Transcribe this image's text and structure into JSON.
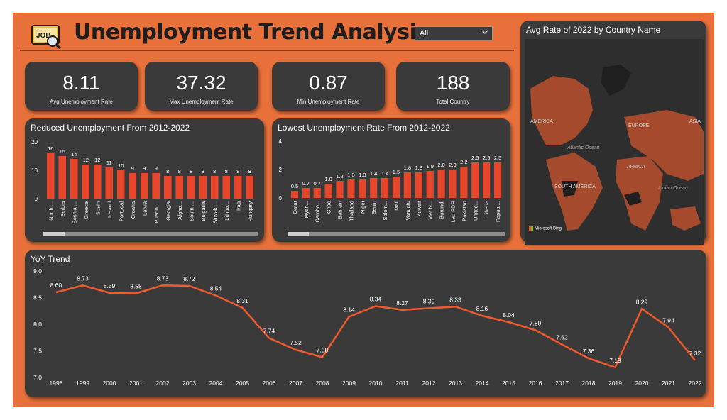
{
  "header": {
    "title": "Unemployment Trend Analysis",
    "logo_text": "JOB"
  },
  "filter": {
    "selected": "All"
  },
  "kpis": [
    {
      "value": "8.11",
      "label": "Avg Unemployment Rate"
    },
    {
      "value": "37.32",
      "label": "Max Unemployment Rate"
    },
    {
      "value": "0.87",
      "label": "Min Unemployment Rate"
    },
    {
      "value": "188",
      "label": "Total Country"
    }
  ],
  "map": {
    "title": "Avg Rate of 2022 by Country Name",
    "labels": {
      "america": "AMERICA",
      "europe": "EUROPE",
      "asia": "ASIA",
      "atlantic": "Atlantic Ocean",
      "africa": "AFRICA",
      "south_america": "SOUTH AMERICA",
      "indian": "Indian Ocean"
    },
    "credit": "Microsoft Bing",
    "colors": {
      "ocean": "#2e2e2e",
      "land": "#a54a2c",
      "dark_land": "#1f1f1f"
    }
  },
  "colors": {
    "accent": "#e8703a",
    "bar": "#e8462a",
    "line": "#f05a2c",
    "card": "#3a3a3a"
  },
  "chart_data": [
    {
      "type": "bar",
      "title": "Reduced Unemployment From 2012-2022",
      "categories": [
        "North ...",
        "Serbia",
        "Bosnia ...",
        "Greece",
        "Spain",
        "Ireland",
        "Portugal",
        "Croatia",
        "Latvia",
        "Puerto ...",
        "Georgia",
        "Afgha...",
        "South ...",
        "Bulgaria",
        "Slovak ...",
        "Lithua...",
        "Iraq",
        "Hungary"
      ],
      "values": [
        16,
        15,
        14,
        12,
        12,
        11,
        10,
        9,
        9,
        9,
        8,
        8,
        8,
        8,
        8,
        8,
        8,
        8
      ],
      "yticks": [
        0,
        10,
        20
      ],
      "ylim": [
        0,
        20
      ]
    },
    {
      "type": "bar",
      "title": "Lowest Unemployment Rate From 2012-2022",
      "categories": [
        "Qatar",
        "Myan...",
        "Cambo...",
        "Chad",
        "Bahrain",
        "Thailand",
        "Niger",
        "Benin",
        "Solom...",
        "Mali",
        "Vanuatu",
        "Kuwait",
        "Viet N...",
        "Burundi",
        "Lao PDR",
        "Pakistan",
        "United...",
        "Liberia",
        "Papua ..."
      ],
      "values": [
        0.5,
        0.7,
        0.7,
        1.0,
        1.2,
        1.3,
        1.3,
        1.4,
        1.4,
        1.5,
        1.8,
        1.8,
        1.9,
        2.0,
        2.0,
        2.2,
        2.5,
        2.5,
        2.5
      ],
      "labels": [
        "0.5",
        "0.7",
        "0.7",
        "1.0",
        "1.2",
        "1.3",
        "1.3",
        "1.4",
        "1.4",
        "1.5",
        "1.8",
        "1.8",
        "1.9",
        "2.0",
        "2.0",
        "2.2",
        "2.5",
        "2.5",
        "2.5"
      ],
      "yticks": [
        0,
        2,
        4
      ],
      "ylim": [
        0,
        4
      ]
    },
    {
      "type": "line",
      "title": "YoY Trend",
      "x": [
        "1998",
        "1999",
        "2000",
        "2001",
        "2002",
        "2003",
        "2004",
        "2005",
        "2006",
        "2007",
        "2008",
        "2009",
        "2010",
        "2011",
        "2012",
        "2013",
        "2014",
        "2015",
        "2016",
        "2017",
        "2018",
        "2019",
        "2020",
        "2021",
        "2022"
      ],
      "values": [
        8.6,
        8.73,
        8.59,
        8.58,
        8.73,
        8.72,
        8.54,
        8.31,
        7.74,
        7.52,
        7.38,
        8.14,
        8.34,
        8.27,
        8.3,
        8.33,
        8.16,
        8.04,
        7.89,
        7.62,
        7.36,
        7.19,
        8.29,
        7.94,
        7.32
      ],
      "labels": [
        "8.60",
        "8.73",
        "8.59",
        "8.58",
        "8.73",
        "8.72",
        "8.54",
        "8.31",
        "7.74",
        "7.52",
        "7.38",
        "8.14",
        "8.34",
        "8.27",
        "8.30",
        "8.33",
        "8.16",
        "8.04",
        "7.89",
        "7.62",
        "7.36",
        "7.19",
        "8.29",
        "7.94",
        "7.32"
      ],
      "yticks": [
        "7.0",
        "7.5",
        "8.0",
        "8.5",
        "9.0"
      ],
      "ylim": [
        7.0,
        9.0
      ]
    }
  ]
}
